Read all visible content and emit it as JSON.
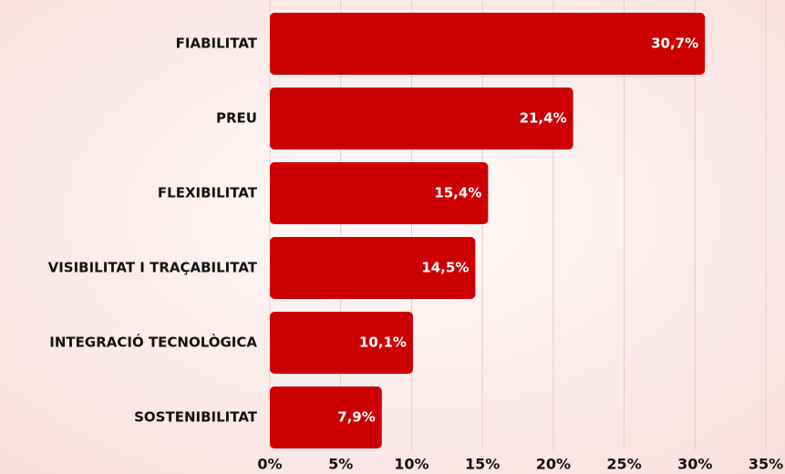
{
  "chart_data": {
    "type": "bar",
    "orientation": "horizontal",
    "categories": [
      "FIABILITAT",
      "PREU",
      "FLEXIBILITAT",
      "VISIBILITAT I TRAÇABILITAT",
      "INTEGRACIÓ TECNOLÒGICA",
      "SOSTENIBILITAT"
    ],
    "values": [
      30.7,
      21.4,
      15.4,
      14.5,
      10.1,
      7.9
    ],
    "value_labels": [
      "30,7%",
      "21,4%",
      "15,4%",
      "14,5%",
      "10,1%",
      "7,9%"
    ],
    "color": "#cc0000",
    "xlim": [
      0,
      35
    ],
    "xticks": [
      {
        "value": 0,
        "label": "0%"
      },
      {
        "value": 5,
        "label": "5%"
      },
      {
        "value": 10,
        "label": "10%"
      },
      {
        "value": 15,
        "label": "15%"
      },
      {
        "value": 20,
        "label": "20%"
      },
      {
        "value": 25,
        "label": "25%"
      },
      {
        "value": 30,
        "label": "30%"
      },
      {
        "value": 35,
        "label": "35%"
      }
    ],
    "grid": true
  }
}
